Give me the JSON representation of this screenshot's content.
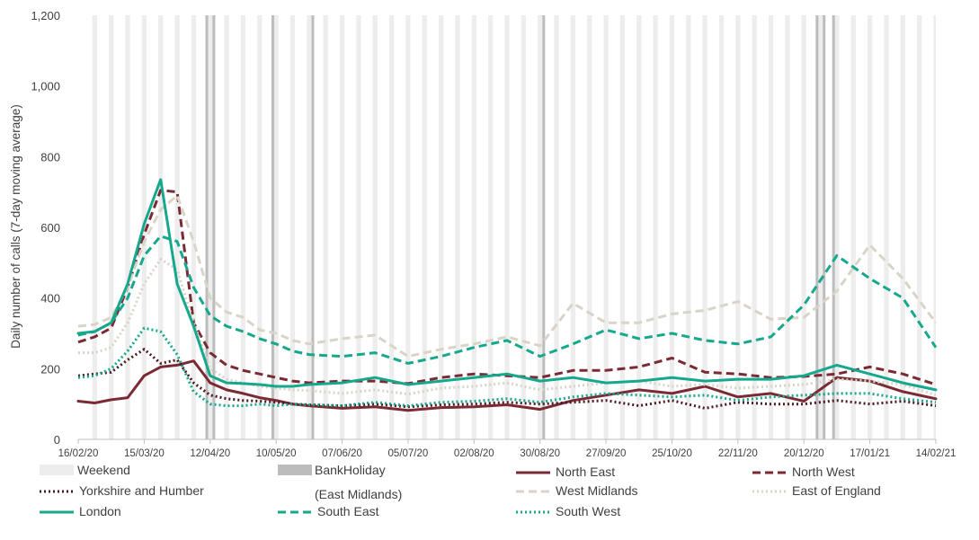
{
  "chart_data": {
    "type": "line",
    "title": "",
    "xlabel": "",
    "ylabel": "Daily number of calls (7-day moving average)",
    "ylim": [
      0,
      1200
    ],
    "yticks": [
      0,
      200,
      400,
      600,
      800,
      1000,
      1200
    ],
    "ytick_labels": [
      "0",
      "200",
      "400",
      "600",
      "800",
      "1,000",
      "1,200"
    ],
    "xlim": [
      "2020-02-16",
      "2021-02-14"
    ],
    "xticks": [
      "2020-02-16",
      "2020-03-15",
      "2020-04-12",
      "2020-05-10",
      "2020-06-07",
      "2020-07-05",
      "2020-08-02",
      "2020-08-30",
      "2020-09-27",
      "2020-10-25",
      "2020-11-22",
      "2020-12-20",
      "2021-01-17",
      "2021-02-14"
    ],
    "xtick_labels": [
      "16/02/20",
      "15/03/20",
      "12/04/20",
      "10/05/20",
      "07/06/20",
      "05/07/20",
      "02/08/20",
      "30/08/20",
      "27/09/20",
      "25/10/20",
      "22/11/20",
      "20/12/20",
      "17/01/21",
      "14/02/21"
    ],
    "grid": false,
    "legend_position": "bottom",
    "weekend_label": "Weekend",
    "weekend_color": "#ededed",
    "bank_holiday_label_line1": "BankHoliday",
    "bank_holiday_label_line2": "(East Midlands)",
    "bank_holiday_color": "#bcbcbc",
    "bank_holidays": [
      "2020-04-10",
      "2020-04-13",
      "2020-05-08",
      "2020-05-25",
      "2020-08-31",
      "2020-12-25",
      "2020-12-28",
      "2021-01-01"
    ],
    "series": [
      {
        "name": "North East",
        "color": "#7b2a33",
        "style": "solid",
        "x": [
          "2020-02-16",
          "2020-02-23",
          "2020-03-01",
          "2020-03-08",
          "2020-03-15",
          "2020-03-22",
          "2020-03-29",
          "2020-04-05",
          "2020-04-12",
          "2020-04-19",
          "2020-04-26",
          "2020-05-03",
          "2020-05-10",
          "2020-05-17",
          "2020-05-24",
          "2020-06-07",
          "2020-06-21",
          "2020-07-05",
          "2020-07-19",
          "2020-08-02",
          "2020-08-16",
          "2020-08-30",
          "2020-09-13",
          "2020-09-27",
          "2020-10-11",
          "2020-10-25",
          "2020-11-08",
          "2020-11-22",
          "2020-12-06",
          "2020-12-20",
          "2021-01-03",
          "2021-01-17",
          "2021-01-31",
          "2021-02-14"
        ],
        "y": [
          108,
          103,
          112,
          118,
          180,
          205,
          210,
          222,
          160,
          140,
          130,
          118,
          110,
          100,
          95,
          88,
          92,
          82,
          90,
          92,
          98,
          85,
          110,
          125,
          140,
          130,
          150,
          120,
          130,
          108,
          175,
          165,
          135,
          115
        ]
      },
      {
        "name": "North West",
        "color": "#7b2a33",
        "style": "dashed",
        "x": [
          "2020-02-16",
          "2020-02-23",
          "2020-03-01",
          "2020-03-08",
          "2020-03-15",
          "2020-03-22",
          "2020-03-29",
          "2020-04-05",
          "2020-04-12",
          "2020-04-19",
          "2020-04-26",
          "2020-05-03",
          "2020-05-10",
          "2020-05-17",
          "2020-05-24",
          "2020-06-07",
          "2020-06-21",
          "2020-07-05",
          "2020-07-19",
          "2020-08-02",
          "2020-08-16",
          "2020-08-30",
          "2020-09-13",
          "2020-09-27",
          "2020-10-11",
          "2020-10-25",
          "2020-11-08",
          "2020-11-22",
          "2020-12-06",
          "2020-12-20",
          "2021-01-03",
          "2021-01-17",
          "2021-01-31",
          "2021-02-14"
        ],
        "y": [
          275,
          290,
          315,
          430,
          580,
          705,
          700,
          330,
          245,
          210,
          195,
          185,
          175,
          165,
          160,
          165,
          165,
          158,
          175,
          185,
          180,
          175,
          195,
          195,
          205,
          230,
          190,
          185,
          175,
          178,
          185,
          205,
          185,
          155
        ]
      },
      {
        "name": "Yorkshire and Humber",
        "color": "#4a1a22",
        "style": "dotted",
        "x": [
          "2020-02-16",
          "2020-02-23",
          "2020-03-01",
          "2020-03-08",
          "2020-03-15",
          "2020-03-22",
          "2020-03-29",
          "2020-04-05",
          "2020-04-12",
          "2020-04-19",
          "2020-04-26",
          "2020-05-03",
          "2020-05-10",
          "2020-05-17",
          "2020-05-24",
          "2020-06-07",
          "2020-06-21",
          "2020-07-05",
          "2020-07-19",
          "2020-08-02",
          "2020-08-16",
          "2020-08-30",
          "2020-09-13",
          "2020-09-27",
          "2020-10-11",
          "2020-10-25",
          "2020-11-08",
          "2020-11-22",
          "2020-12-06",
          "2020-12-20",
          "2021-01-03",
          "2021-01-17",
          "2021-01-31",
          "2021-02-14"
        ],
        "y": [
          180,
          185,
          190,
          225,
          255,
          215,
          225,
          160,
          125,
          115,
          110,
          108,
          105,
          100,
          98,
          95,
          100,
          92,
          98,
          100,
          105,
          100,
          105,
          110,
          95,
          110,
          88,
          105,
          100,
          100,
          110,
          100,
          108,
          95
        ]
      },
      {
        "name": "West Midlands",
        "color": "#d9d4c7",
        "style": "dashed",
        "x": [
          "2020-02-16",
          "2020-02-23",
          "2020-03-01",
          "2020-03-08",
          "2020-03-15",
          "2020-03-22",
          "2020-03-29",
          "2020-04-05",
          "2020-04-12",
          "2020-04-19",
          "2020-04-26",
          "2020-05-03",
          "2020-05-10",
          "2020-05-17",
          "2020-05-24",
          "2020-06-07",
          "2020-06-21",
          "2020-07-05",
          "2020-07-19",
          "2020-08-02",
          "2020-08-16",
          "2020-08-30",
          "2020-09-13",
          "2020-09-27",
          "2020-10-11",
          "2020-10-25",
          "2020-11-08",
          "2020-11-22",
          "2020-12-06",
          "2020-12-20",
          "2021-01-03",
          "2021-01-17",
          "2021-01-31",
          "2021-02-14"
        ],
        "y": [
          320,
          325,
          345,
          430,
          560,
          650,
          690,
          560,
          400,
          360,
          345,
          310,
          300,
          280,
          270,
          285,
          295,
          235,
          255,
          270,
          290,
          265,
          385,
          330,
          330,
          355,
          365,
          390,
          340,
          345,
          420,
          550,
          455,
          330
        ]
      },
      {
        "name": "East of England",
        "color": "#d9d4c7",
        "style": "dotted",
        "x": [
          "2020-02-16",
          "2020-02-23",
          "2020-03-01",
          "2020-03-08",
          "2020-03-15",
          "2020-03-22",
          "2020-03-29",
          "2020-04-05",
          "2020-04-12",
          "2020-04-19",
          "2020-04-26",
          "2020-05-03",
          "2020-05-10",
          "2020-05-17",
          "2020-05-24",
          "2020-06-07",
          "2020-06-21",
          "2020-07-05",
          "2020-07-19",
          "2020-08-02",
          "2020-08-16",
          "2020-08-30",
          "2020-09-13",
          "2020-09-27",
          "2020-10-11",
          "2020-10-25",
          "2020-11-08",
          "2020-11-22",
          "2020-12-06",
          "2020-12-20",
          "2021-01-03",
          "2021-01-17",
          "2021-01-31",
          "2021-02-14"
        ],
        "y": [
          245,
          245,
          260,
          330,
          440,
          510,
          480,
          330,
          200,
          170,
          160,
          150,
          145,
          140,
          138,
          130,
          140,
          128,
          145,
          150,
          160,
          140,
          150,
          160,
          165,
          150,
          155,
          145,
          150,
          155,
          170,
          165,
          155,
          125
        ]
      },
      {
        "name": "London",
        "color": "#16a88c",
        "style": "solid",
        "x": [
          "2020-02-16",
          "2020-02-23",
          "2020-03-01",
          "2020-03-08",
          "2020-03-15",
          "2020-03-22",
          "2020-03-29",
          "2020-04-05",
          "2020-04-12",
          "2020-04-19",
          "2020-04-26",
          "2020-05-03",
          "2020-05-10",
          "2020-05-17",
          "2020-05-24",
          "2020-06-07",
          "2020-06-21",
          "2020-07-05",
          "2020-07-19",
          "2020-08-02",
          "2020-08-16",
          "2020-08-30",
          "2020-09-13",
          "2020-09-27",
          "2020-10-11",
          "2020-10-25",
          "2020-11-08",
          "2020-11-22",
          "2020-12-06",
          "2020-12-20",
          "2021-01-03",
          "2021-01-17",
          "2021-01-31",
          "2021-02-14"
        ],
        "y": [
          300,
          305,
          330,
          440,
          610,
          735,
          440,
          320,
          180,
          160,
          158,
          155,
          150,
          150,
          155,
          160,
          175,
          155,
          165,
          175,
          185,
          165,
          175,
          160,
          165,
          175,
          165,
          170,
          170,
          180,
          210,
          185,
          160,
          140
        ]
      },
      {
        "name": "South East",
        "color": "#16a88c",
        "style": "dashed",
        "x": [
          "2020-02-16",
          "2020-02-23",
          "2020-03-01",
          "2020-03-08",
          "2020-03-15",
          "2020-03-22",
          "2020-03-29",
          "2020-04-05",
          "2020-04-12",
          "2020-04-19",
          "2020-04-26",
          "2020-05-03",
          "2020-05-10",
          "2020-05-17",
          "2020-05-24",
          "2020-06-07",
          "2020-06-21",
          "2020-07-05",
          "2020-07-19",
          "2020-08-02",
          "2020-08-16",
          "2020-08-30",
          "2020-09-13",
          "2020-09-27",
          "2020-10-11",
          "2020-10-25",
          "2020-11-08",
          "2020-11-22",
          "2020-12-06",
          "2020-12-20",
          "2021-01-03",
          "2021-01-17",
          "2021-01-31",
          "2021-02-14"
        ],
        "y": [
          295,
          305,
          330,
          400,
          520,
          575,
          560,
          430,
          350,
          320,
          305,
          285,
          270,
          250,
          240,
          235,
          245,
          215,
          235,
          260,
          280,
          235,
          270,
          310,
          285,
          300,
          280,
          270,
          290,
          380,
          520,
          455,
          400,
          260
        ]
      },
      {
        "name": "South West",
        "color": "#16a88c",
        "style": "dotted",
        "x": [
          "2020-02-16",
          "2020-02-23",
          "2020-03-01",
          "2020-03-08",
          "2020-03-15",
          "2020-03-22",
          "2020-03-29",
          "2020-04-05",
          "2020-04-12",
          "2020-04-19",
          "2020-04-26",
          "2020-05-03",
          "2020-05-10",
          "2020-05-17",
          "2020-05-24",
          "2020-06-07",
          "2020-06-21",
          "2020-07-05",
          "2020-07-19",
          "2020-08-02",
          "2020-08-16",
          "2020-08-30",
          "2020-09-13",
          "2020-09-27",
          "2020-10-11",
          "2020-10-25",
          "2020-11-08",
          "2020-11-22",
          "2020-12-06",
          "2020-12-20",
          "2021-01-03",
          "2021-01-17",
          "2021-01-31",
          "2021-02-14"
        ],
        "y": [
          175,
          180,
          200,
          250,
          315,
          305,
          240,
          135,
          100,
          95,
          95,
          100,
          95,
          100,
          98,
          95,
          105,
          95,
          105,
          108,
          115,
          105,
          120,
          130,
          125,
          120,
          125,
          110,
          120,
          125,
          130,
          130,
          115,
          105
        ]
      }
    ]
  }
}
